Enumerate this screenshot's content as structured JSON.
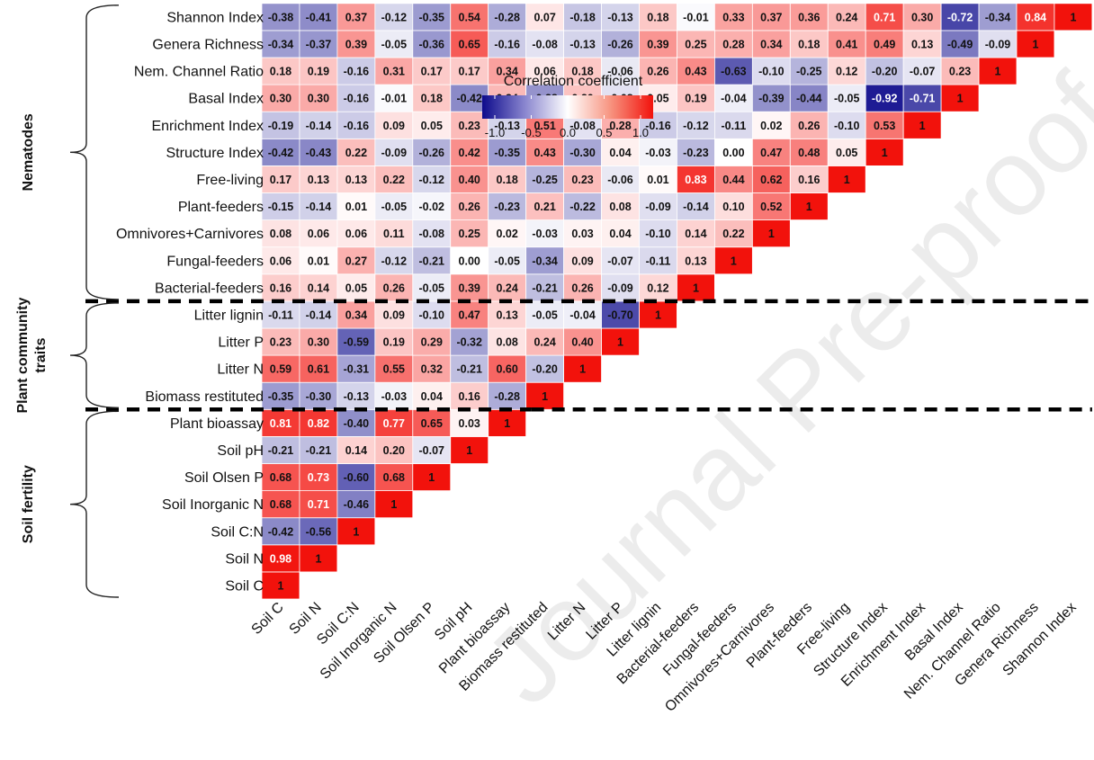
{
  "chart_data": {
    "type": "heatmap",
    "title": "",
    "legend": {
      "title": "Correlation coefficient",
      "ticks": [
        "-1.0",
        "-0.5",
        "0.0",
        "0.5",
        "1.0"
      ],
      "range": [
        -1,
        1
      ],
      "placement": "top-center"
    },
    "colors": {
      "negative": "#0d0a8c",
      "zero": "#ffffff",
      "positive": "#f2120c"
    },
    "labels": [
      "Soil C",
      "Soil N",
      "Soil C:N",
      "Soil Inorganic N",
      "Soil Olsen P",
      "Soil pH",
      "Plant bioassay",
      "Biomass restituted",
      "Litter N",
      "Litter P",
      "Litter lignin",
      "Bacterial-feeders",
      "Fungal-feeders",
      "Omnivores+Carnivores",
      "Plant-feeders",
      "Free-living",
      "Structure Index",
      "Enrichment Index",
      "Basal Index",
      "Nem. Channel Ratio",
      "Genera Richness",
      "Shannon Index"
    ],
    "groups": [
      {
        "label": "Nematodes",
        "lines": [
          "Nematodes"
        ],
        "from": "Bacterial-feeders",
        "to": "Shannon Index"
      },
      {
        "label": "Plant community traits",
        "lines": [
          "Plant community",
          "traits"
        ],
        "from": "Biomass restituted",
        "to": "Litter lignin"
      },
      {
        "label": "Soil fertility",
        "lines": [
          "Soil fertility"
        ],
        "from": "Soil C",
        "to": "Plant bioassay"
      }
    ],
    "rows": [
      {
        "label": "Soil C",
        "values": [
          1
        ]
      },
      {
        "label": "Soil N",
        "values": [
          0.98,
          1
        ]
      },
      {
        "label": "Soil C:N",
        "values": [
          -0.42,
          -0.56,
          1
        ]
      },
      {
        "label": "Soil Inorganic N",
        "values": [
          0.68,
          0.71,
          -0.46,
          1
        ]
      },
      {
        "label": "Soil Olsen P",
        "values": [
          0.68,
          0.73,
          -0.6,
          0.68,
          1
        ]
      },
      {
        "label": "Soil pH",
        "values": [
          -0.21,
          -0.21,
          0.14,
          0.2,
          -0.07,
          1
        ]
      },
      {
        "label": "Plant bioassay",
        "values": [
          0.81,
          0.82,
          -0.4,
          0.77,
          0.65,
          0.03,
          1
        ]
      },
      {
        "label": "Biomass restituted",
        "values": [
          -0.35,
          -0.3,
          -0.13,
          -0.03,
          0.04,
          0.16,
          -0.28,
          1
        ]
      },
      {
        "label": "Litter N",
        "values": [
          0.59,
          0.61,
          -0.31,
          0.55,
          0.32,
          -0.21,
          0.6,
          -0.2,
          1
        ]
      },
      {
        "label": "Litter P",
        "values": [
          0.23,
          0.3,
          -0.59,
          0.19,
          0.29,
          -0.32,
          0.08,
          0.24,
          0.4,
          1
        ]
      },
      {
        "label": "Litter lignin",
        "values": [
          -0.11,
          -0.14,
          0.34,
          0.09,
          -0.1,
          0.47,
          0.13,
          -0.05,
          -0.04,
          -0.7,
          1
        ]
      },
      {
        "label": "Bacterial-feeders",
        "values": [
          0.16,
          0.14,
          0.05,
          0.26,
          -0.05,
          0.39,
          0.24,
          -0.21,
          0.26,
          -0.09,
          0.12,
          1
        ]
      },
      {
        "label": "Fungal-feeders",
        "values": [
          0.06,
          0.01,
          0.27,
          -0.12,
          -0.21,
          0.0,
          -0.05,
          -0.34,
          0.09,
          -0.07,
          -0.11,
          0.13,
          1
        ]
      },
      {
        "label": "Omnivores+Carnivores",
        "values": [
          0.08,
          0.06,
          0.06,
          0.11,
          -0.08,
          0.25,
          0.02,
          -0.03,
          0.03,
          0.04,
          -0.1,
          0.14,
          0.22,
          1
        ]
      },
      {
        "label": "Plant-feeders",
        "values": [
          -0.15,
          -0.14,
          0.01,
          -0.05,
          -0.02,
          0.26,
          -0.23,
          0.21,
          -0.22,
          0.08,
          -0.09,
          -0.14,
          0.1,
          0.52,
          1
        ]
      },
      {
        "label": "Free-living",
        "values": [
          0.17,
          0.13,
          0.13,
          0.22,
          -0.12,
          0.4,
          0.18,
          -0.25,
          0.23,
          -0.06,
          0.01,
          0.83,
          0.44,
          0.62,
          0.16,
          1
        ]
      },
      {
        "label": "Structure Index",
        "values": [
          -0.42,
          -0.43,
          0.22,
          -0.09,
          -0.26,
          0.42,
          -0.35,
          0.43,
          -0.3,
          0.04,
          -0.03,
          -0.23,
          0.0,
          0.47,
          0.48,
          0.05,
          1
        ]
      },
      {
        "label": "Enrichment Index",
        "values": [
          -0.19,
          -0.14,
          -0.16,
          0.09,
          0.05,
          0.23,
          -0.13,
          0.51,
          -0.08,
          0.28,
          -0.16,
          -0.12,
          -0.11,
          0.02,
          0.26,
          -0.1,
          0.53,
          1
        ]
      },
      {
        "label": "Basal Index",
        "values": [
          0.3,
          0.3,
          -0.16,
          -0.01,
          0.18,
          -0.42,
          0.24,
          -0.38,
          0.2,
          -0.08,
          0.05,
          0.19,
          -0.04,
          -0.39,
          -0.44,
          -0.05,
          -0.92,
          -0.71,
          1
        ]
      },
      {
        "label": "Nem. Channel Ratio",
        "values": [
          0.18,
          0.19,
          -0.16,
          0.31,
          0.17,
          0.17,
          0.34,
          0.06,
          0.18,
          -0.06,
          0.26,
          0.43,
          -0.63,
          -0.1,
          -0.25,
          0.12,
          -0.2,
          -0.07,
          0.23,
          1
        ]
      },
      {
        "label": "Genera Richness",
        "values": [
          -0.34,
          -0.37,
          0.39,
          -0.05,
          -0.36,
          0.65,
          -0.16,
          -0.08,
          -0.13,
          -0.26,
          0.39,
          0.25,
          0.28,
          0.34,
          0.18,
          0.41,
          0.49,
          0.13,
          -0.49,
          -0.09,
          1
        ]
      },
      {
        "label": "Shannon Index",
        "values": [
          -0.38,
          -0.41,
          0.37,
          -0.12,
          -0.35,
          0.54,
          -0.28,
          0.07,
          -0.18,
          -0.13,
          0.18,
          -0.01,
          0.33,
          0.37,
          0.36,
          0.24,
          0.71,
          0.3,
          -0.72,
          -0.34,
          0.84,
          1
        ]
      }
    ],
    "value_format": "2 decimals, diagonal shown as 1"
  },
  "watermark": "Journal Pre-proof"
}
